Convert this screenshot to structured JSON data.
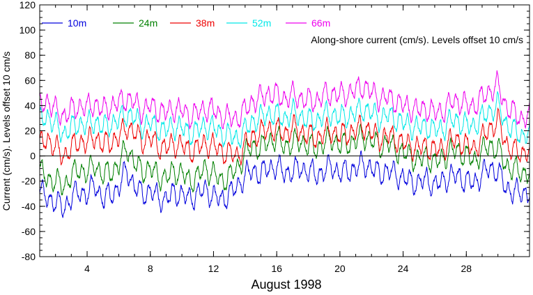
{
  "chart_data": {
    "type": "line",
    "title": "",
    "annotation": "Along-shore current (cm/s). Levels offset 10 cm/s",
    "xlabel": "August 1998",
    "ylabel": "Current (cm/s). Levels offset 10 cm/s",
    "xlim": [
      1,
      32
    ],
    "ylim": [
      -80,
      120
    ],
    "xticks": [
      4,
      8,
      12,
      16,
      20,
      24,
      28
    ],
    "xtick_labels": [
      "4",
      "8",
      "12",
      "16",
      "20",
      "24",
      "28"
    ],
    "yticks": [
      -80,
      -60,
      -40,
      -20,
      0,
      20,
      40,
      60,
      80,
      100,
      120
    ],
    "ytick_labels": [
      "-80",
      "-60",
      "-40",
      "-20",
      "0",
      "20",
      "40",
      "60",
      "80",
      "100",
      "120"
    ],
    "grid": false,
    "zero_line": true,
    "legend_position": "top-left",
    "series": [
      {
        "name": "10m",
        "color": "#0000dd",
        "x": [
          1,
          1.5,
          2,
          2.5,
          3,
          3.5,
          4,
          4.5,
          5,
          5.5,
          6,
          6.5,
          7,
          7.5,
          8,
          8.5,
          9,
          9.5,
          10,
          10.5,
          11,
          11.5,
          12,
          12.5,
          13,
          13.5,
          14,
          14.5,
          15,
          15.5,
          16,
          16.5,
          17,
          17.5,
          18,
          18.5,
          19,
          19.5,
          20,
          20.5,
          21,
          21.5,
          22,
          22.5,
          23,
          23.5,
          24,
          24.5,
          25,
          25.5,
          26,
          26.5,
          27,
          27.5,
          28,
          28.5,
          29,
          29.5,
          30,
          30.5,
          31,
          31.5,
          32
        ],
        "values": [
          -28,
          -34,
          -36,
          -42,
          -33,
          -28,
          -31,
          -22,
          -35,
          -30,
          -26,
          -10,
          -25,
          -30,
          -28,
          -33,
          -35,
          -29,
          -31,
          -34,
          -30,
          -27,
          -32,
          -35,
          -30,
          -25,
          -15,
          -12,
          -14,
          -10,
          -8,
          -14,
          -12,
          -10,
          -12,
          -15,
          -12,
          -8,
          -14,
          -12,
          -10,
          -6,
          -10,
          -14,
          -12,
          -14,
          -18,
          -20,
          -22,
          -18,
          -24,
          -20,
          -16,
          -16,
          -20,
          -22,
          -14,
          -10,
          -12,
          -26,
          -28,
          -30,
          -28
        ]
      },
      {
        "name": "24m",
        "color": "#008000",
        "x": [
          1,
          1.5,
          2,
          2.5,
          3,
          3.5,
          4,
          4.5,
          5,
          5.5,
          6,
          6.5,
          7,
          7.5,
          8,
          8.5,
          9,
          9.5,
          10,
          10.5,
          11,
          11.5,
          12,
          12.5,
          13,
          13.5,
          14,
          14.5,
          15,
          15.5,
          16,
          16.5,
          17,
          17.5,
          18,
          18.5,
          19,
          19.5,
          20,
          20.5,
          21,
          21.5,
          22,
          22.5,
          23,
          23.5,
          24,
          24.5,
          25,
          25.5,
          26,
          26.5,
          27,
          27.5,
          28,
          28.5,
          29,
          29.5,
          30,
          30.5,
          31,
          31.5,
          32
        ],
        "values": [
          -12,
          -18,
          -20,
          -24,
          -16,
          -10,
          -14,
          -6,
          -16,
          -12,
          -8,
          8,
          -6,
          -12,
          -10,
          -16,
          -18,
          -12,
          -14,
          -20,
          -16,
          -10,
          -14,
          -20,
          -16,
          -10,
          2,
          8,
          6,
          12,
          14,
          8,
          10,
          12,
          8,
          6,
          10,
          14,
          8,
          10,
          12,
          16,
          12,
          8,
          10,
          6,
          2,
          0,
          -4,
          0,
          -6,
          -2,
          4,
          4,
          0,
          -4,
          4,
          8,
          6,
          -8,
          -10,
          -14,
          -12
        ]
      },
      {
        "name": "38m",
        "color": "#ee0000",
        "x": [
          1,
          1.5,
          2,
          2.5,
          3,
          3.5,
          4,
          4.5,
          5,
          5.5,
          6,
          6.5,
          7,
          7.5,
          8,
          8.5,
          9,
          9.5,
          10,
          10.5,
          11,
          11.5,
          12,
          12.5,
          13,
          13.5,
          14,
          14.5,
          15,
          15.5,
          16,
          16.5,
          17,
          17.5,
          18,
          18.5,
          19,
          19.5,
          20,
          20.5,
          21,
          21.5,
          22,
          22.5,
          23,
          23.5,
          24,
          24.5,
          25,
          25.5,
          26,
          26.5,
          27,
          27.5,
          28,
          28.5,
          29,
          29.5,
          30,
          30.5,
          31,
          31.5,
          32
        ],
        "values": [
          8,
          14,
          6,
          0,
          6,
          12,
          10,
          16,
          8,
          12,
          14,
          24,
          18,
          12,
          14,
          8,
          6,
          10,
          8,
          4,
          6,
          10,
          8,
          4,
          2,
          0,
          8,
          16,
          18,
          22,
          20,
          18,
          22,
          20,
          16,
          14,
          18,
          20,
          16,
          18,
          20,
          24,
          18,
          14,
          16,
          14,
          10,
          8,
          6,
          8,
          4,
          6,
          12,
          12,
          8,
          6,
          14,
          22,
          28,
          10,
          4,
          2,
          6
        ]
      },
      {
        "name": "52m",
        "color": "#00e8e8",
        "x": [
          1,
          1.5,
          2,
          2.5,
          3,
          3.5,
          4,
          4.5,
          5,
          5.5,
          6,
          6.5,
          7,
          7.5,
          8,
          8.5,
          9,
          9.5,
          10,
          10.5,
          11,
          11.5,
          12,
          12.5,
          13,
          13.5,
          14,
          14.5,
          15,
          15.5,
          16,
          16.5,
          17,
          17.5,
          18,
          18.5,
          19,
          19.5,
          20,
          20.5,
          21,
          21.5,
          22,
          22.5,
          23,
          23.5,
          24,
          24.5,
          25,
          25.5,
          26,
          26.5,
          27,
          27.5,
          28,
          28.5,
          29,
          29.5,
          30,
          30.5,
          31,
          31.5,
          32
        ],
        "values": [
          28,
          32,
          24,
          18,
          22,
          26,
          24,
          28,
          22,
          26,
          28,
          34,
          30,
          24,
          26,
          22,
          20,
          24,
          22,
          18,
          20,
          24,
          22,
          18,
          16,
          14,
          20,
          28,
          30,
          34,
          32,
          30,
          34,
          32,
          28,
          28,
          32,
          34,
          30,
          32,
          34,
          38,
          34,
          30,
          32,
          30,
          26,
          24,
          22,
          24,
          20,
          22,
          28,
          28,
          24,
          24,
          30,
          36,
          40,
          26,
          20,
          16,
          20
        ]
      },
      {
        "name": "66m",
        "color": "#ee00ee",
        "x": [
          1,
          1.5,
          2,
          2.5,
          3,
          3.5,
          4,
          4.5,
          5,
          5.5,
          6,
          6.5,
          7,
          7.5,
          8,
          8.5,
          9,
          9.5,
          10,
          10.5,
          11,
          11.5,
          12,
          12.5,
          13,
          13.5,
          14,
          14.5,
          15,
          15.5,
          16,
          16.5,
          17,
          17.5,
          18,
          18.5,
          19,
          19.5,
          20,
          20.5,
          21,
          21.5,
          22,
          22.5,
          23,
          23.5,
          24,
          24.5,
          25,
          25.5,
          26,
          26.5,
          27,
          27.5,
          28,
          28.5,
          29,
          29.5,
          30,
          30.5,
          31,
          31.5,
          32
        ],
        "values": [
          40,
          44,
          36,
          32,
          36,
          40,
          38,
          42,
          36,
          40,
          42,
          46,
          42,
          36,
          40,
          36,
          34,
          38,
          36,
          32,
          34,
          38,
          36,
          32,
          30,
          30,
          36,
          44,
          46,
          50,
          48,
          46,
          48,
          46,
          44,
          44,
          48,
          50,
          48,
          50,
          52,
          56,
          50,
          46,
          46,
          44,
          40,
          38,
          36,
          38,
          34,
          36,
          42,
          44,
          40,
          40,
          46,
          52,
          56,
          40,
          34,
          30,
          32
        ]
      }
    ]
  }
}
